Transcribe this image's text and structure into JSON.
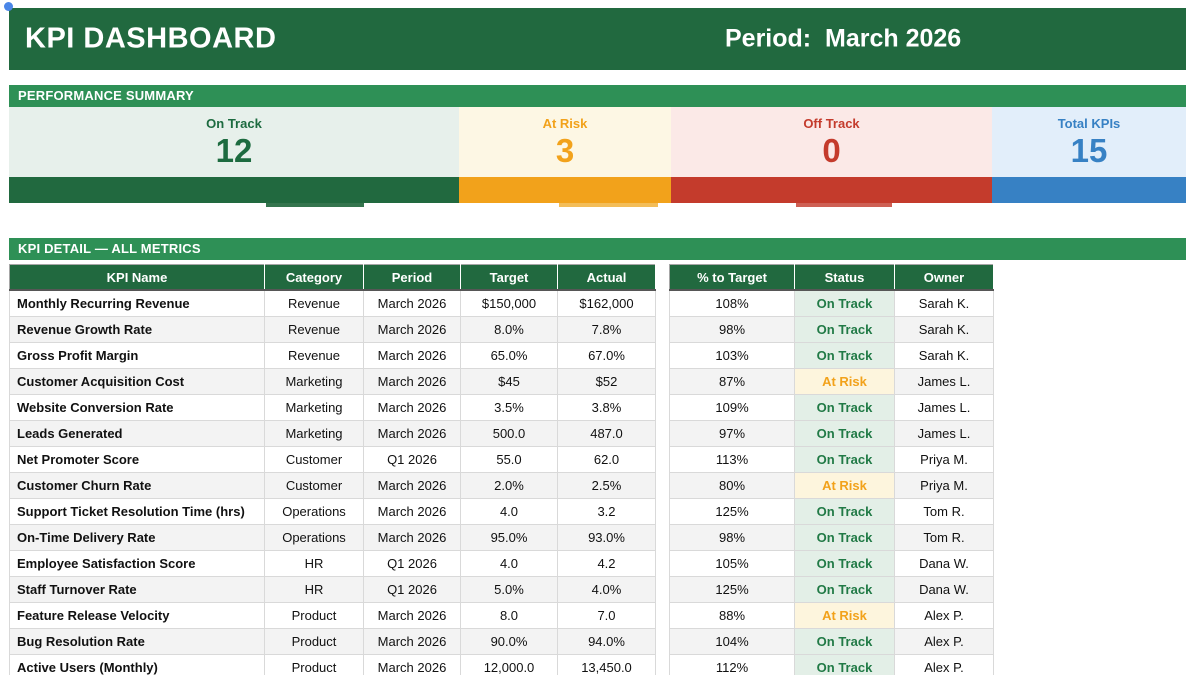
{
  "header": {
    "title": "KPI DASHBOARD",
    "period": "Period:  March 2026"
  },
  "summary": {
    "section_title": "PERFORMANCE SUMMARY",
    "cards": [
      {
        "label": "On Track",
        "value": "12",
        "color": "#1d6b40",
        "bg": "#e7f0eb",
        "bar": "#21693f"
      },
      {
        "label": "At Risk",
        "value": "3",
        "color": "#f2a21b",
        "bg": "#fdf7e4",
        "bar": "#f2a21b"
      },
      {
        "label": "Off Track",
        "value": "0",
        "color": "#c43b2c",
        "bg": "#fbe9e7",
        "bar": "#c43b2c"
      },
      {
        "label": "Total KPIs",
        "value": "15",
        "color": "#3781c4",
        "bg": "#e2eefa",
        "bar": "#3781c4"
      }
    ]
  },
  "detail": {
    "section_title": "KPI DETAIL — ALL METRICS",
    "left_headers": [
      "KPI Name",
      "Category",
      "Period",
      "Target",
      "Actual"
    ],
    "right_headers": [
      "% to Target",
      "Status",
      "Owner"
    ],
    "rows": [
      {
        "name": "Monthly Recurring Revenue",
        "category": "Revenue",
        "period": "March 2026",
        "target": "$150,000",
        "actual": "$162,000",
        "pct_to_target": "108%",
        "status": "On Track",
        "owner": "Sarah K."
      },
      {
        "name": "Revenue Growth Rate",
        "category": "Revenue",
        "period": "March 2026",
        "target": "8.0%",
        "actual": "7.8%",
        "pct_to_target": "98%",
        "status": "On Track",
        "owner": "Sarah K."
      },
      {
        "name": "Gross Profit Margin",
        "category": "Revenue",
        "period": "March 2026",
        "target": "65.0%",
        "actual": "67.0%",
        "pct_to_target": "103%",
        "status": "On Track",
        "owner": "Sarah K."
      },
      {
        "name": "Customer Acquisition Cost",
        "category": "Marketing",
        "period": "March 2026",
        "target": "$45",
        "actual": "$52",
        "pct_to_target": "87%",
        "status": "At Risk",
        "owner": "James L."
      },
      {
        "name": "Website Conversion Rate",
        "category": "Marketing",
        "period": "March 2026",
        "target": "3.5%",
        "actual": "3.8%",
        "pct_to_target": "109%",
        "status": "On Track",
        "owner": "James L."
      },
      {
        "name": "Leads Generated",
        "category": "Marketing",
        "period": "March 2026",
        "target": "500.0",
        "actual": "487.0",
        "pct_to_target": "97%",
        "status": "On Track",
        "owner": "James L."
      },
      {
        "name": "Net Promoter Score",
        "category": "Customer",
        "period": "Q1 2026",
        "target": "55.0",
        "actual": "62.0",
        "pct_to_target": "113%",
        "status": "On Track",
        "owner": "Priya M."
      },
      {
        "name": "Customer Churn Rate",
        "category": "Customer",
        "period": "March 2026",
        "target": "2.0%",
        "actual": "2.5%",
        "pct_to_target": "80%",
        "status": "At Risk",
        "owner": "Priya M."
      },
      {
        "name": "Support Ticket Resolution Time (hrs)",
        "category": "Operations",
        "period": "March 2026",
        "target": "4.0",
        "actual": "3.2",
        "pct_to_target": "125%",
        "status": "On Track",
        "owner": "Tom R."
      },
      {
        "name": "On-Time Delivery Rate",
        "category": "Operations",
        "period": "March 2026",
        "target": "95.0%",
        "actual": "93.0%",
        "pct_to_target": "98%",
        "status": "On Track",
        "owner": "Tom R."
      },
      {
        "name": "Employee Satisfaction Score",
        "category": "HR",
        "period": "Q1 2026",
        "target": "4.0",
        "actual": "4.2",
        "pct_to_target": "105%",
        "status": "On Track",
        "owner": "Dana W."
      },
      {
        "name": "Staff Turnover Rate",
        "category": "HR",
        "period": "Q1 2026",
        "target": "5.0%",
        "actual": "4.0%",
        "pct_to_target": "125%",
        "status": "On Track",
        "owner": "Dana W."
      },
      {
        "name": "Feature Release Velocity",
        "category": "Product",
        "period": "March 2026",
        "target": "8.0",
        "actual": "7.0",
        "pct_to_target": "88%",
        "status": "At Risk",
        "owner": "Alex P."
      },
      {
        "name": "Bug Resolution Rate",
        "category": "Product",
        "period": "March 2026",
        "target": "90.0%",
        "actual": "94.0%",
        "pct_to_target": "104%",
        "status": "On Track",
        "owner": "Alex P."
      },
      {
        "name": "Active Users (Monthly)",
        "category": "Product",
        "period": "March 2026",
        "target": "12,000.0",
        "actual": "13,450.0",
        "pct_to_target": "112%",
        "status": "On Track",
        "owner": "Alex P."
      }
    ]
  },
  "colors": {
    "header_green": "#21693f",
    "section_green": "#2e9056",
    "on_track_green": "#217a46",
    "at_risk_orange": "#f2a21b",
    "off_track_red": "#c43b2c",
    "total_blue": "#3781c4",
    "status_on_bg": "#e3efe7",
    "status_risk_bg": "#fdf5dd",
    "row_alt_gray": "#f3f3f3",
    "selection_dot_blue": "#4a86e8"
  }
}
